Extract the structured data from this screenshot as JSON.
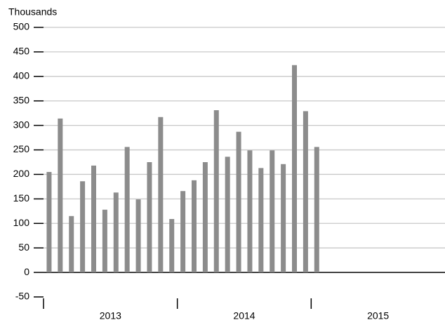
{
  "chart_data": {
    "type": "bar",
    "title": "Thousands",
    "categories": [
      null,
      null,
      null,
      null,
      null,
      null,
      null,
      null,
      null,
      null,
      null,
      null,
      null,
      null,
      null,
      null,
      null,
      null,
      null,
      null,
      null,
      null,
      null,
      null,
      null
    ],
    "values": [
      205,
      314,
      115,
      186,
      218,
      128,
      163,
      256,
      149,
      225,
      317,
      109,
      166,
      188,
      225,
      331,
      236,
      287,
      249,
      213,
      249,
      221,
      423,
      329,
      256
    ],
    "x_group_labels": [
      "2013",
      "2014",
      "2015"
    ],
    "color": "#8c8c8c",
    "ylim": [
      -50,
      500
    ],
    "yticks": [
      -50,
      0,
      50,
      100,
      150,
      200,
      250,
      300,
      350,
      400,
      450,
      500
    ],
    "grid": true
  }
}
